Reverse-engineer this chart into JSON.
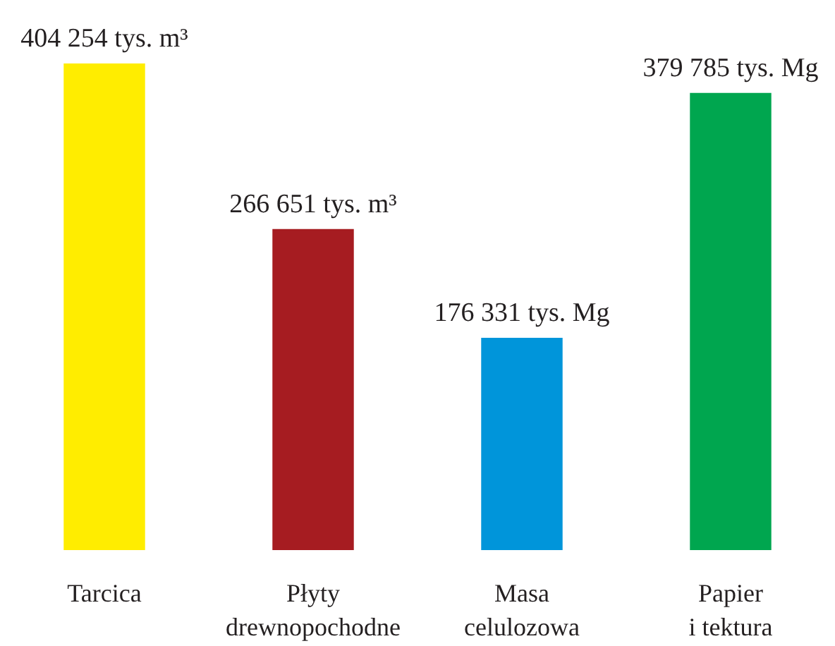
{
  "chart_data": {
    "type": "bar",
    "categories": [
      "Tarcica",
      "Płyty\ndrewnopochodne",
      "Masa\ncelulozowa",
      "Papier\ni tektura"
    ],
    "values": [
      404254,
      266651,
      176331,
      379785
    ],
    "colors": [
      "#ffed00",
      "#a61c21",
      "#0095da",
      "#00a64f"
    ],
    "value_labels": [
      "404 254 tys. m³",
      "266 651 tys. m³",
      "176 331 tys. Mg",
      "379 785 tys. Mg"
    ]
  }
}
